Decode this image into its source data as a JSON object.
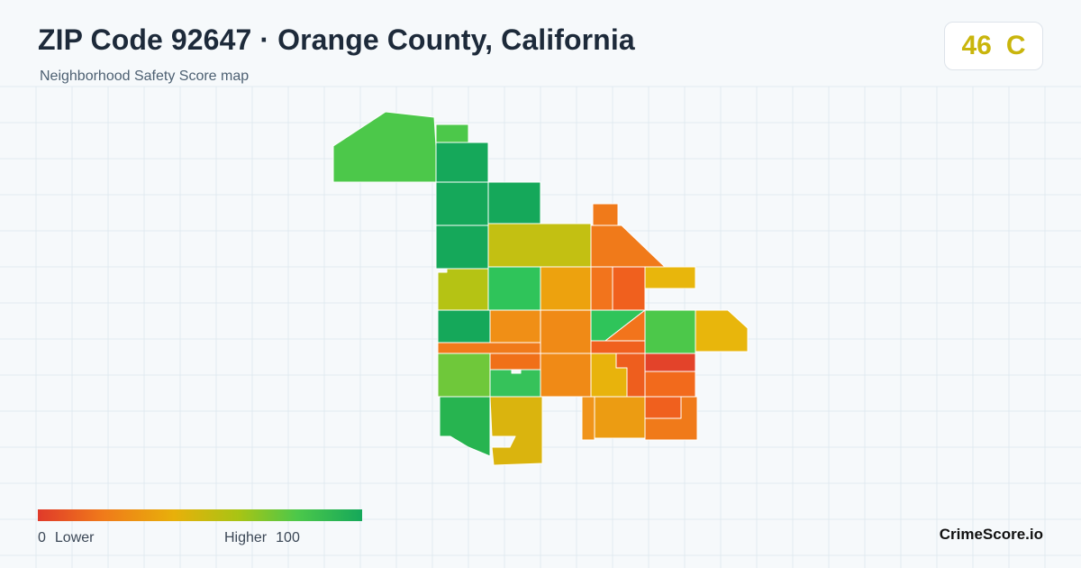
{
  "header": {
    "title": "ZIP Code 92647 · Orange County, California",
    "subtitle": "Neighborhood Safety Score map"
  },
  "score": {
    "value": "46",
    "grade": "C",
    "color": "#c9b50c"
  },
  "legend": {
    "low_value": "0",
    "low_label": "Lower",
    "high_label": "Higher",
    "high_value": "100",
    "gradient": [
      "#e03a2a",
      "#f07a1a",
      "#e8b00a",
      "#a8c414",
      "#4cc84a",
      "#15a85a"
    ]
  },
  "brand": "CrimeScore.io",
  "colors": {
    "background": "#f6f9fb",
    "grid": "#e1eaf0",
    "title": "#1d2a3a",
    "tract_border": "#ffffff"
  }
}
